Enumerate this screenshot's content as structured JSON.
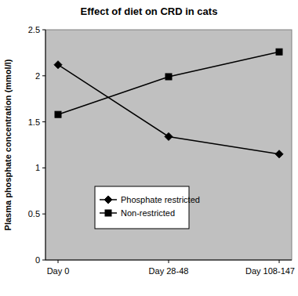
{
  "chart_data": {
    "type": "line",
    "title": "Effect of diet on CRD in cats",
    "y_label": "Plasma phosphate concentration (mmol/l)",
    "categories": [
      "Day 0",
      "Day 28-48",
      "Day 108-147"
    ],
    "series": [
      {
        "name": "Phosphate restricted",
        "color": "#000000",
        "marker": "diamond",
        "line_style": "solid",
        "values": [
          2.12,
          1.34,
          1.15
        ]
      },
      {
        "name": "Non-restricted",
        "color": "#000000",
        "marker": "square",
        "line_style": "solid",
        "values": [
          1.58,
          1.99,
          2.26
        ]
      }
    ],
    "ylim": [
      0,
      2.5
    ],
    "yticks": [
      0,
      0.5,
      1,
      1.5,
      2,
      2.5
    ],
    "grid": false,
    "legend": "lower center"
  }
}
